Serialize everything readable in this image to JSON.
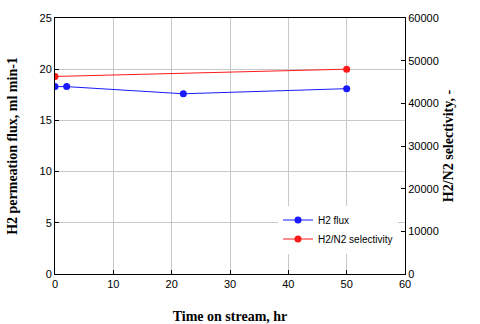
{
  "chart_data": {
    "type": "line",
    "xlabel": "Time on stream, hr",
    "ylabel": "H2 permeation flux, ml min-1",
    "y2label": "H2/N2 selectivity, -",
    "xlim": [
      0,
      60
    ],
    "xticks": [
      0,
      10,
      20,
      30,
      40,
      50,
      60
    ],
    "ylim": [
      0,
      25
    ],
    "yticks": [
      0,
      5,
      10,
      15,
      20,
      25
    ],
    "y2lim": [
      0,
      60000
    ],
    "y2ticks": [
      0,
      10000,
      20000,
      30000,
      40000,
      50000,
      60000
    ],
    "grid": true,
    "legend": "lower right",
    "series": [
      {
        "name": "H2 flux",
        "color": "#1a1aff",
        "marker": "circle",
        "x": [
          0,
          2,
          22,
          50
        ],
        "values": [
          18.3,
          18.3,
          17.6,
          18.1
        ]
      },
      {
        "name": "H2/N2 selectivity",
        "color": "#ff1a1a",
        "marker": "circle",
        "axis": "y2",
        "x": [
          0,
          50
        ],
        "values": [
          46300,
          48000
        ]
      }
    ]
  }
}
